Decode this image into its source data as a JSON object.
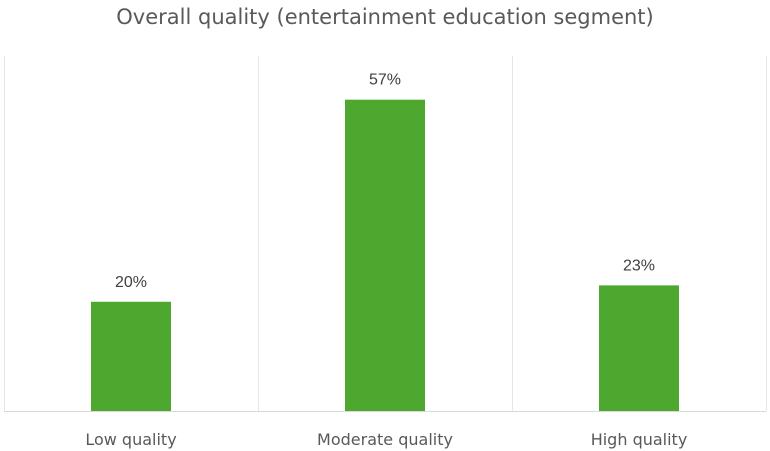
{
  "chart_data": {
    "type": "bar",
    "title": "Overall quality (entertainment education segment)",
    "categories": [
      "Low quality",
      "Moderate quality",
      "High quality"
    ],
    "values": [
      20,
      57,
      23
    ],
    "data_labels": [
      "20%",
      "57%",
      "23%"
    ],
    "unit": "%",
    "ylim": [
      0,
      65
    ],
    "grid": false,
    "category_dividers": true,
    "legend": "none",
    "colors": {
      "bar": "#4ea72e"
    }
  }
}
